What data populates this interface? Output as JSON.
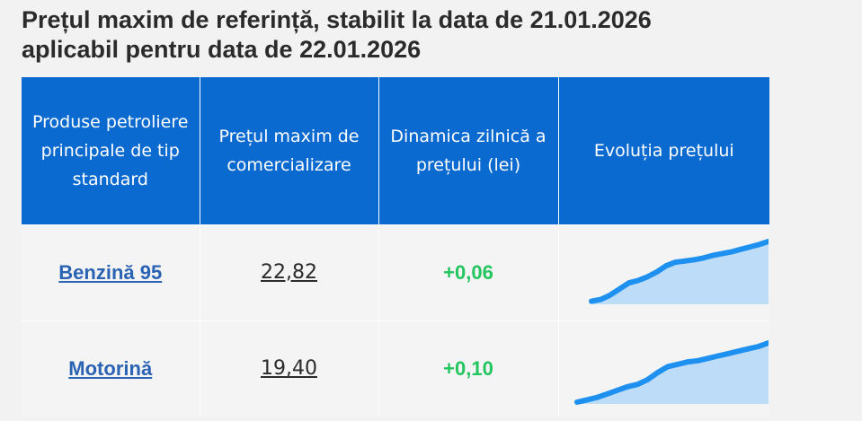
{
  "header": {
    "title_line1": "Prețul maxim de referință, stabilit la data de 21.01.2026",
    "title_line2": "aplicabil pentru data de 22.01.2026"
  },
  "table": {
    "columns": [
      "Produse petroliere principale de tip standard",
      "Prețul maxim de comercializare",
      "Dinamica zilnică a prețului (lei)",
      "Evoluția prețului"
    ],
    "rows": [
      {
        "product": "Benzină 95",
        "price": "22,82",
        "delta": "+0,06",
        "trend": [
          0.02,
          0.05,
          0.12,
          0.22,
          0.32,
          0.36,
          0.42,
          0.5,
          0.6,
          0.66,
          0.68,
          0.7,
          0.73,
          0.77,
          0.8,
          0.83,
          0.87,
          0.91,
          0.95,
          1.0
        ]
      },
      {
        "product": "Motorină",
        "price": "19,40",
        "delta": "+0,10",
        "trend": [
          0.0,
          0.04,
          0.08,
          0.14,
          0.2,
          0.26,
          0.3,
          0.38,
          0.5,
          0.6,
          0.64,
          0.68,
          0.7,
          0.74,
          0.78,
          0.82,
          0.86,
          0.9,
          0.94,
          1.0
        ]
      }
    ]
  },
  "colors": {
    "header_bg": "#0a6ad0",
    "link": "#2a63b3",
    "positive": "#22c55e",
    "spark_line": "#1e90f0",
    "spark_fill": "#bcdcf8"
  }
}
